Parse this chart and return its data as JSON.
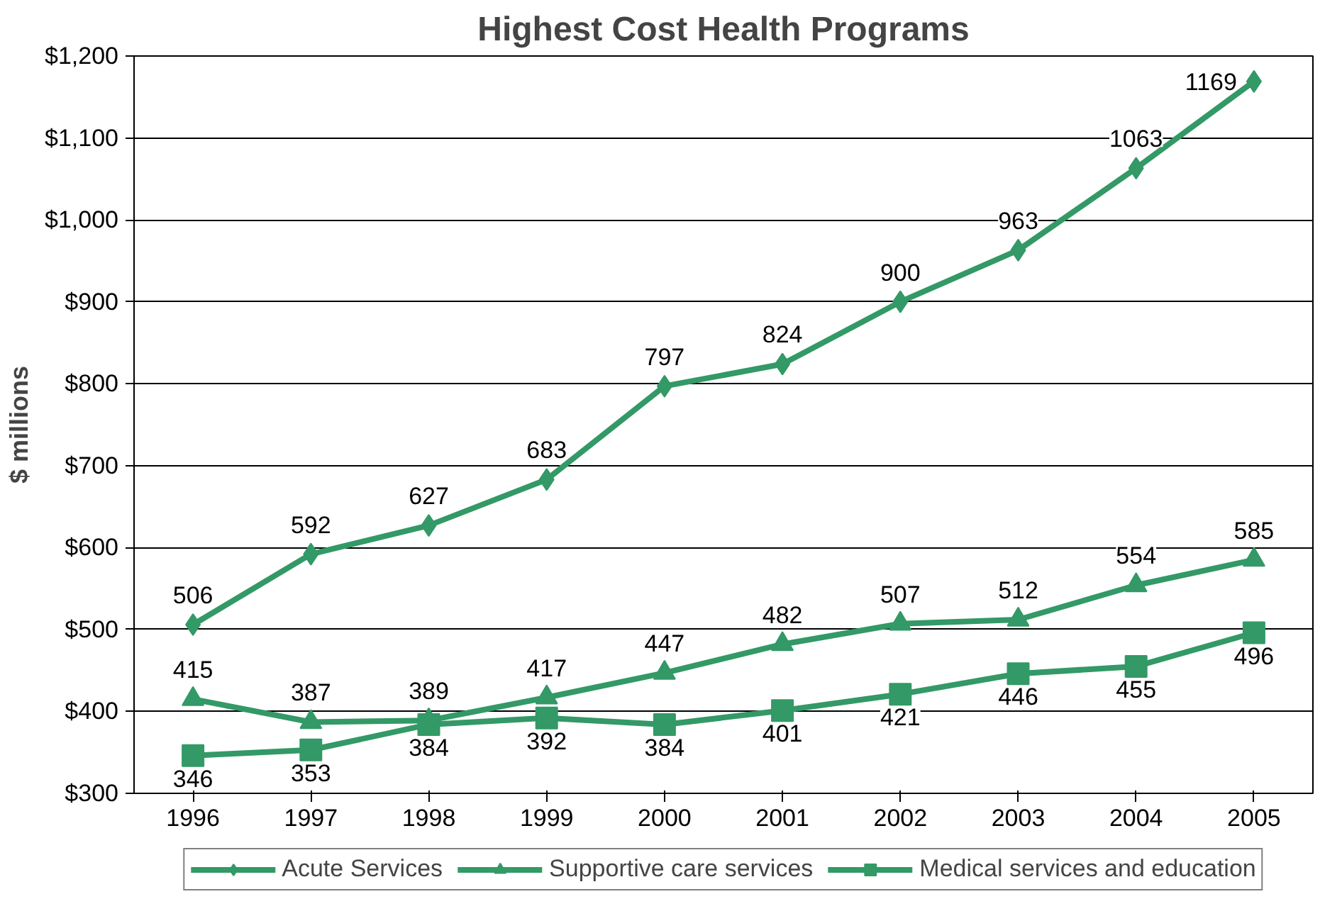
{
  "chart_data": {
    "type": "line",
    "title": "Highest Cost Health Programs",
    "ylabel": "$ millions",
    "categories": [
      "1996",
      "1997",
      "1998",
      "1999",
      "2000",
      "2001",
      "2002",
      "2003",
      "2004",
      "2005"
    ],
    "series": [
      {
        "name": "Acute Services",
        "color": "#339966",
        "marker": "diamond",
        "values": [
          506,
          592,
          627,
          683,
          797,
          824,
          900,
          963,
          1063,
          1169
        ]
      },
      {
        "name": "Supportive care services",
        "color": "#339966",
        "marker": "triangle",
        "values": [
          415,
          387,
          389,
          417,
          447,
          482,
          507,
          512,
          554,
          585
        ]
      },
      {
        "name": "Medical services and education",
        "color": "#339966",
        "marker": "square",
        "values": [
          346,
          353,
          384,
          392,
          384,
          401,
          421,
          446,
          455,
          496
        ]
      }
    ],
    "ylim": [
      300,
      1200
    ],
    "yticks": [
      {
        "value": 300,
        "label": "$300"
      },
      {
        "value": 400,
        "label": "$400"
      },
      {
        "value": 500,
        "label": "$500"
      },
      {
        "value": 600,
        "label": "$600"
      },
      {
        "value": 700,
        "label": "$700"
      },
      {
        "value": 800,
        "label": "$800"
      },
      {
        "value": 900,
        "label": "$900"
      },
      {
        "value": 1000,
        "label": "$1,000"
      },
      {
        "value": 1100,
        "label": "$1,100"
      },
      {
        "value": 1200,
        "label": "$1,200"
      }
    ],
    "grid": "y",
    "legend": "bottom",
    "data_labels": true,
    "line_style": "solid"
  }
}
